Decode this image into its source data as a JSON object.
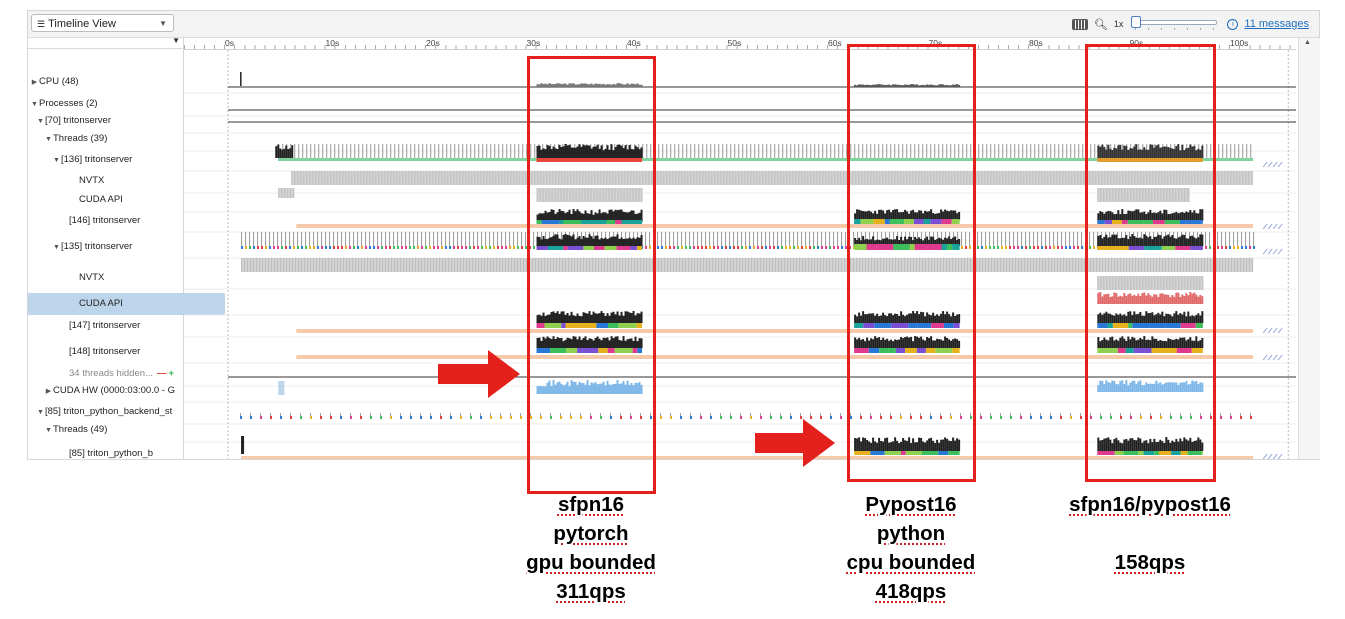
{
  "toolbar": {
    "view_select": "Timeline View",
    "zoom_label": "1x",
    "messages_link": "11 messages"
  },
  "ruler": {
    "ticks": [
      "0s",
      "10s",
      "20s",
      "30s",
      "40s",
      "50s",
      "60s",
      "70s",
      "80s",
      "90s",
      "100s"
    ]
  },
  "tree": {
    "rows": [
      {
        "label": "CPU (48)",
        "expander": "right",
        "selected": false
      },
      {
        "label": "Processes (2)",
        "expander": "down",
        "selected": false
      },
      {
        "label": "[70] tritonserver",
        "expander": "down",
        "selected": false
      },
      {
        "label": "Threads (39)",
        "expander": "down",
        "selected": false
      },
      {
        "label": "[136] tritonserver",
        "expander": "down",
        "selected": false
      },
      {
        "label": "NVTX",
        "expander": "",
        "selected": false
      },
      {
        "label": "CUDA API",
        "expander": "",
        "selected": false
      },
      {
        "label": "[146] tritonserver",
        "expander": "",
        "selected": false
      },
      {
        "label": "[135] tritonserver",
        "expander": "down",
        "selected": false
      },
      {
        "label": "NVTX",
        "expander": "",
        "selected": false
      },
      {
        "label": "CUDA API",
        "expander": "",
        "selected": true
      },
      {
        "label": "[147] tritonserver",
        "expander": "",
        "selected": false
      },
      {
        "label": "[148] tritonserver",
        "expander": "",
        "selected": false
      },
      {
        "label": "34 threads hidden...",
        "expander": "",
        "selected": false
      },
      {
        "label": "CUDA HW (0000:03:00.0 - G",
        "expander": "right",
        "selected": false
      },
      {
        "label": "[85] triton_python_backend_st",
        "expander": "down",
        "selected": false
      },
      {
        "label": "Threads (49)",
        "expander": "down",
        "selected": false
      },
      {
        "label": "[85] triton_python_b",
        "expander": "",
        "selected": false
      }
    ]
  },
  "annotations": {
    "captions": [
      {
        "lines": [
          "sfpn16",
          "pytorch",
          "gpu bounded",
          "311qps"
        ]
      },
      {
        "lines": [
          "Pypost16",
          "python",
          "cpu bounded",
          "418qps"
        ]
      },
      {
        "lines": [
          "sfpn16/pypost16",
          "",
          "158qps"
        ]
      }
    ]
  },
  "colors": {
    "highlight": "#e3201b",
    "selected_row": "#bcd5ea",
    "gpu_kernel": "#7fb8e8",
    "activity": "#222222",
    "range_bar": "#f6c9a8"
  }
}
